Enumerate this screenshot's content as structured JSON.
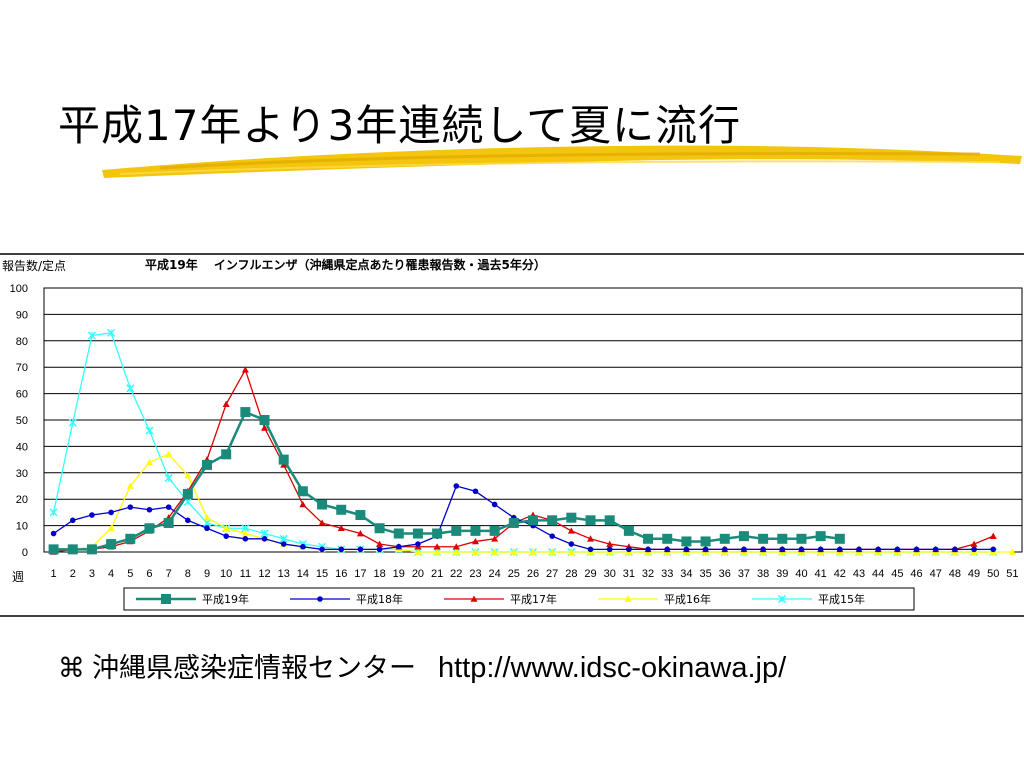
{
  "slide": {
    "title": "平成17年より3年連続して夏に流行",
    "footer_org": "沖縄県感染症情報センター",
    "footer_url": "http://www.idsc-okinawa.jp/",
    "bullet_icon": "command-key-icon",
    "accent_brush_color": "#f2c200"
  },
  "chart_data": {
    "type": "line",
    "title": "平成19年　 インフルエンザ（沖縄県定点あたり罹患報告数・過去5年分）",
    "ylabel": "報告数/定点",
    "xlabel": "週",
    "ylim": [
      0,
      100
    ],
    "yticks": [
      0,
      10,
      20,
      30,
      40,
      50,
      60,
      70,
      80,
      90,
      100
    ],
    "x": [
      1,
      2,
      3,
      4,
      5,
      6,
      7,
      8,
      9,
      10,
      11,
      12,
      13,
      14,
      15,
      16,
      17,
      18,
      19,
      20,
      21,
      22,
      23,
      24,
      25,
      26,
      27,
      28,
      29,
      30,
      31,
      32,
      33,
      34,
      35,
      36,
      37,
      38,
      39,
      40,
      41,
      42,
      43,
      44,
      45,
      46,
      47,
      48,
      49,
      50,
      51
    ],
    "grid": true,
    "legend_position": "bottom",
    "series": [
      {
        "name": "平成19年",
        "color": "#1a8a7a",
        "marker": "square",
        "values": [
          1,
          1,
          1,
          3,
          5,
          9,
          11,
          22,
          33,
          37,
          53,
          50,
          35,
          23,
          18,
          16,
          14,
          9,
          7,
          7,
          7,
          8,
          8,
          8,
          11,
          12,
          12,
          13,
          12,
          12,
          8,
          5,
          5,
          4,
          4,
          5,
          6,
          5,
          5,
          5,
          6,
          5,
          null,
          null,
          null,
          null,
          null,
          null,
          null,
          null,
          null
        ]
      },
      {
        "name": "平成18年",
        "color": "#0000cc",
        "marker": "circle",
        "values": [
          7,
          12,
          14,
          15,
          17,
          16,
          17,
          12,
          9,
          6,
          5,
          5,
          3,
          2,
          1,
          1,
          1,
          1,
          2,
          3,
          6,
          25,
          23,
          18,
          13,
          10,
          6,
          3,
          1,
          1,
          1,
          1,
          1,
          1,
          1,
          1,
          1,
          1,
          1,
          1,
          1,
          1,
          1,
          1,
          1,
          1,
          1,
          1,
          1,
          1,
          null
        ]
      },
      {
        "name": "平成17年",
        "color": "#dd0000",
        "marker": "triangle",
        "values": [
          0,
          1,
          1,
          2,
          4,
          8,
          13,
          23,
          35,
          56,
          69,
          47,
          33,
          18,
          11,
          9,
          7,
          3,
          2,
          2,
          2,
          2,
          4,
          5,
          11,
          14,
          12,
          8,
          5,
          3,
          2,
          1,
          1,
          1,
          1,
          1,
          1,
          1,
          1,
          1,
          1,
          1,
          1,
          1,
          1,
          1,
          1,
          1,
          3,
          6,
          null
        ]
      },
      {
        "name": "平成16年",
        "color": "#ffff00",
        "marker": "triangle",
        "values": [
          1,
          1,
          2,
          9,
          25,
          34,
          37,
          29,
          13,
          9,
          7,
          5,
          3,
          2,
          1,
          1,
          1,
          1,
          1,
          0,
          0,
          0,
          0,
          0,
          0,
          0,
          0,
          0,
          0,
          0,
          0,
          0,
          0,
          0,
          0,
          0,
          0,
          0,
          0,
          0,
          0,
          0,
          0,
          0,
          0,
          0,
          0,
          0,
          0,
          0,
          0
        ]
      },
      {
        "name": "平成15年",
        "color": "#33ffff",
        "marker": "x",
        "values": [
          15,
          49,
          82,
          83,
          62,
          46,
          28,
          19,
          11,
          9,
          9,
          7,
          5,
          3,
          2,
          1,
          1,
          1,
          1,
          0,
          0,
          0,
          0,
          0,
          0,
          0,
          0,
          0,
          0,
          0,
          0,
          0,
          0,
          0,
          0,
          0,
          0,
          0,
          0,
          0,
          0,
          0,
          0,
          0,
          0,
          0,
          0,
          0,
          0,
          0,
          null
        ]
      }
    ]
  }
}
